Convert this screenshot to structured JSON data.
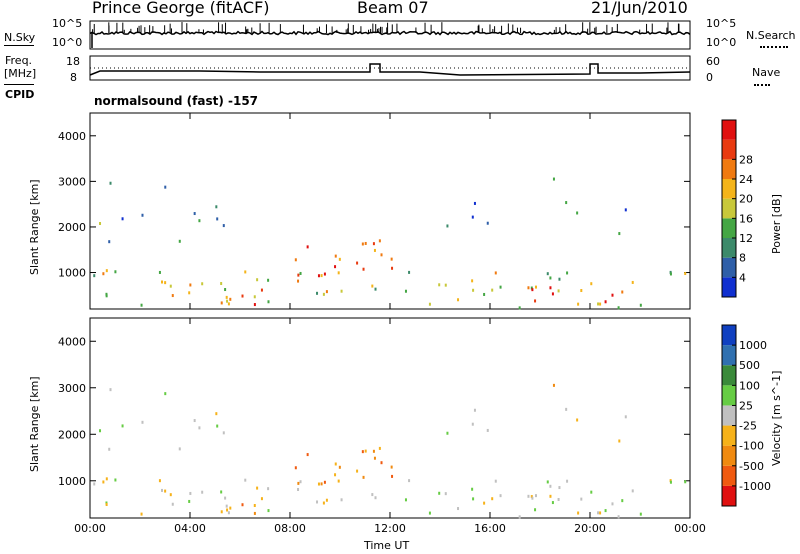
{
  "header": {
    "station": "Prince George (fitACF)",
    "beam": "Beam 07",
    "date": "21/Jun/2010"
  },
  "panels": {
    "nsky": {
      "label": "N.Sky",
      "top": "10^5",
      "bottom": "10^0"
    },
    "freq": {
      "label_line1": "Freq.",
      "label_line2": "[MHz]",
      "top": "18",
      "bottom": "8"
    },
    "nsearch": {
      "label": "N.Search",
      "top": "10^5",
      "bottom": "10^0"
    },
    "nave": {
      "label": "Nave",
      "top": "60",
      "bottom": "0"
    },
    "cpid": {
      "label": "CPID",
      "text": "normalsound (fast) -157"
    }
  },
  "chart_data": [
    {
      "type": "heatmap",
      "title": "",
      "xlabel": "",
      "ylabel": "Slant Range [km]",
      "x_ticks": [
        "00:00",
        "04:00",
        "08:00",
        "12:00",
        "16:00",
        "20:00",
        "00:00"
      ],
      "y_ticks": [
        "1000",
        "2000",
        "3000",
        "4000"
      ],
      "ylim": [
        200,
        4500
      ],
      "colorbar": {
        "label": "Power [dB]",
        "ticks": [
          "4",
          "8",
          "12",
          "16",
          "20",
          "24",
          "28"
        ],
        "colors": [
          "#1030d0",
          "#2f5fa8",
          "#3c8a6a",
          "#44a644",
          "#c8c83a",
          "#f4b41a",
          "#f07a10",
          "#e83a10",
          "#e01010"
        ]
      }
    },
    {
      "type": "heatmap",
      "title": "",
      "xlabel": "Time UT",
      "ylabel": "Slant Range [km]",
      "x_ticks": [
        "00:00",
        "04:00",
        "08:00",
        "12:00",
        "16:00",
        "20:00",
        "00:00"
      ],
      "y_ticks": [
        "1000",
        "2000",
        "3000",
        "4000"
      ],
      "ylim": [
        200,
        4500
      ],
      "colorbar": {
        "label": "Velocity [m s^-1]",
        "ticks": [
          "1000",
          "500",
          "100",
          "25",
          "-25",
          "-100",
          "-500",
          "-1000"
        ],
        "colors": [
          "#1040c0",
          "#3070b0",
          "#3a8a3a",
          "#66cc44",
          "#c0c0c0",
          "#f6b21a",
          "#f08a10",
          "#f05a10",
          "#e01010"
        ]
      }
    }
  ]
}
